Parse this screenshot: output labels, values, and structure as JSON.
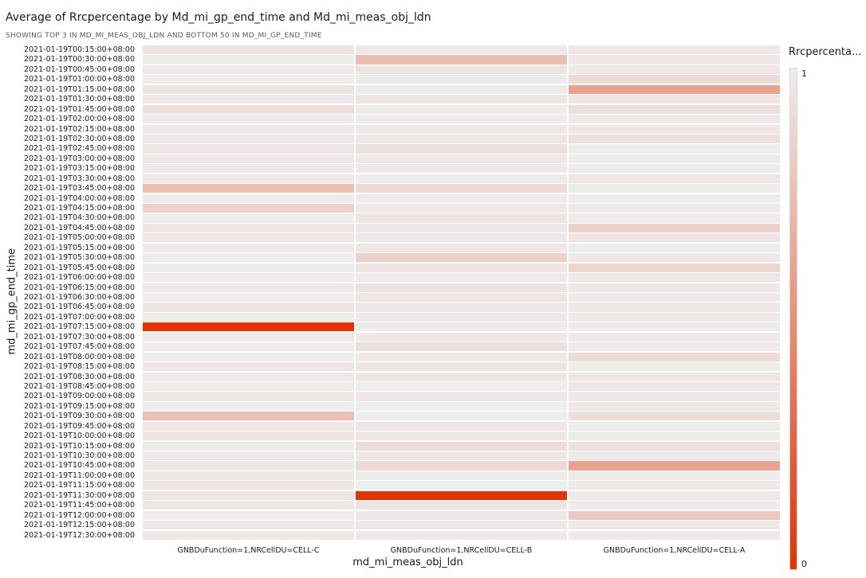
{
  "title": "Average of Rrcpercentage by Md_mi_gp_end_time and Md_mi_meas_obj_ldn",
  "subtitle": "SHOWING TOP 3 IN MD_MI_MEAS_OBJ_LDN AND BOTTOM 50 IN MD_MI_GP_END_TIME",
  "chart_data": {
    "type": "heatmap",
    "title": "Average of Rrcpercentage by Md_mi_gp_end_time and Md_mi_meas_obj_ldn",
    "xlabel": "md_mi_meas_obj_ldn",
    "ylabel": "md_mi_gp_end_time",
    "columns": [
      "GNBDuFunction=1,NRCellDU=CELL-C",
      "GNBDuFunction=1,NRCellDU=CELL-B",
      "GNBDuFunction=1,NRCellDU=CELL-A"
    ],
    "rows": [
      "2021-01-19T00:15:00+08:00",
      "2021-01-19T00:30:00+08:00",
      "2021-01-19T00:45:00+08:00",
      "2021-01-19T01:00:00+08:00",
      "2021-01-19T01:15:00+08:00",
      "2021-01-19T01:30:00+08:00",
      "2021-01-19T01:45:00+08:00",
      "2021-01-19T02:00:00+08:00",
      "2021-01-19T02:15:00+08:00",
      "2021-01-19T02:30:00+08:00",
      "2021-01-19T02:45:00+08:00",
      "2021-01-19T03:00:00+08:00",
      "2021-01-19T03:15:00+08:00",
      "2021-01-19T03:30:00+08:00",
      "2021-01-19T03:45:00+08:00",
      "2021-01-19T04:00:00+08:00",
      "2021-01-19T04:15:00+08:00",
      "2021-01-19T04:30:00+08:00",
      "2021-01-19T04:45:00+08:00",
      "2021-01-19T05:00:00+08:00",
      "2021-01-19T05:15:00+08:00",
      "2021-01-19T05:30:00+08:00",
      "2021-01-19T05:45:00+08:00",
      "2021-01-19T06:00:00+08:00",
      "2021-01-19T06:15:00+08:00",
      "2021-01-19T06:30:00+08:00",
      "2021-01-19T06:45:00+08:00",
      "2021-01-19T07:00:00+08:00",
      "2021-01-19T07:15:00+08:00",
      "2021-01-19T07:30:00+08:00",
      "2021-01-19T07:45:00+08:00",
      "2021-01-19T08:00:00+08:00",
      "2021-01-19T08:15:00+08:00",
      "2021-01-19T08:30:00+08:00",
      "2021-01-19T08:45:00+08:00",
      "2021-01-19T09:00:00+08:00",
      "2021-01-19T09:15:00+08:00",
      "2021-01-19T09:30:00+08:00",
      "2021-01-19T09:45:00+08:00",
      "2021-01-19T10:00:00+08:00",
      "2021-01-19T10:15:00+08:00",
      "2021-01-19T10:30:00+08:00",
      "2021-01-19T10:45:00+08:00",
      "2021-01-19T11:00:00+08:00",
      "2021-01-19T11:15:00+08:00",
      "2021-01-19T11:30:00+08:00",
      "2021-01-19T11:45:00+08:00",
      "2021-01-19T12:00:00+08:00",
      "2021-01-19T12:15:00+08:00",
      "2021-01-19T12:30:00+08:00"
    ],
    "values": [
      [
        0.95,
        0.98,
        0.97
      ],
      [
        0.99,
        0.75,
        0.97
      ],
      [
        0.98,
        0.95,
        0.97
      ],
      [
        0.99,
        0.99,
        0.9
      ],
      [
        0.95,
        0.99,
        0.6
      ],
      [
        0.98,
        0.95,
        0.96
      ],
      [
        0.93,
        0.99,
        0.92
      ],
      [
        0.99,
        0.99,
        0.98
      ],
      [
        0.98,
        0.98,
        0.96
      ],
      [
        0.98,
        0.97,
        0.93
      ],
      [
        0.96,
        0.93,
        0.99
      ],
      [
        0.98,
        0.98,
        0.99
      ],
      [
        0.98,
        0.98,
        0.99
      ],
      [
        0.98,
        0.99,
        0.96
      ],
      [
        0.75,
        0.9,
        0.99
      ],
      [
        0.99,
        0.99,
        1.0
      ],
      [
        0.85,
        0.98,
        0.98
      ],
      [
        0.99,
        0.95,
        0.99
      ],
      [
        0.95,
        0.98,
        0.85
      ],
      [
        0.97,
        0.98,
        0.96
      ],
      [
        0.98,
        0.97,
        0.99
      ],
      [
        0.99,
        0.85,
        0.98
      ],
      [
        0.99,
        0.95,
        0.87
      ],
      [
        0.99,
        0.98,
        0.97
      ],
      [
        0.98,
        0.94,
        0.98
      ],
      [
        0.99,
        0.96,
        0.98
      ],
      [
        0.95,
        0.98,
        0.98
      ],
      [
        0.99,
        0.98,
        0.97
      ],
      [
        0.0,
        0.99,
        0.99
      ],
      [
        0.98,
        0.98,
        0.98
      ],
      [
        0.99,
        0.93,
        0.98
      ],
      [
        0.99,
        0.98,
        0.9
      ],
      [
        0.96,
        0.95,
        0.99
      ],
      [
        0.98,
        0.97,
        0.95
      ],
      [
        0.99,
        1.0,
        0.96
      ],
      [
        0.97,
        0.98,
        0.98
      ],
      [
        1.0,
        1.0,
        0.98
      ],
      [
        0.75,
        1.0,
        0.92
      ],
      [
        0.96,
        0.96,
        0.99
      ],
      [
        0.95,
        0.97,
        0.99
      ],
      [
        0.99,
        0.91,
        0.93
      ],
      [
        0.98,
        0.98,
        0.98
      ],
      [
        0.98,
        0.9,
        0.6
      ],
      [
        0.97,
        0.99,
        0.99
      ],
      [
        0.95,
        1.0,
        0.97
      ],
      [
        0.95,
        0.0,
        0.98
      ],
      [
        0.97,
        0.95,
        0.99
      ],
      [
        0.99,
        0.97,
        0.8
      ],
      [
        0.98,
        0.98,
        0.98
      ],
      [
        0.97,
        0.98,
        0.98
      ]
    ],
    "legend": {
      "title": "Rrcpercenta...",
      "max_label": "1",
      "min_label": "0",
      "min": 0,
      "max": 1,
      "low_color": "#e63100",
      "high_color": "#eeeded",
      "placement": "right"
    }
  }
}
